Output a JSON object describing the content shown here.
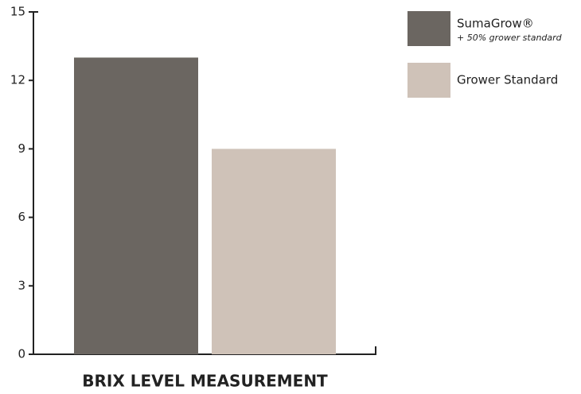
{
  "chart_data": {
    "type": "bar",
    "categories": [
      "BRIX LEVEL MEASUREMENT"
    ],
    "series": [
      {
        "name": "SumaGrow®",
        "legend_note": "+ 50% grower standard",
        "color": "#6b6661",
        "values": [
          13
        ]
      },
      {
        "name": "Grower Standard",
        "color": "#cfc2b8",
        "values": [
          9
        ]
      }
    ],
    "ylim": [
      0,
      15
    ],
    "yticks": [
      0,
      3,
      6,
      9,
      12,
      15
    ],
    "legend": "top-right"
  }
}
